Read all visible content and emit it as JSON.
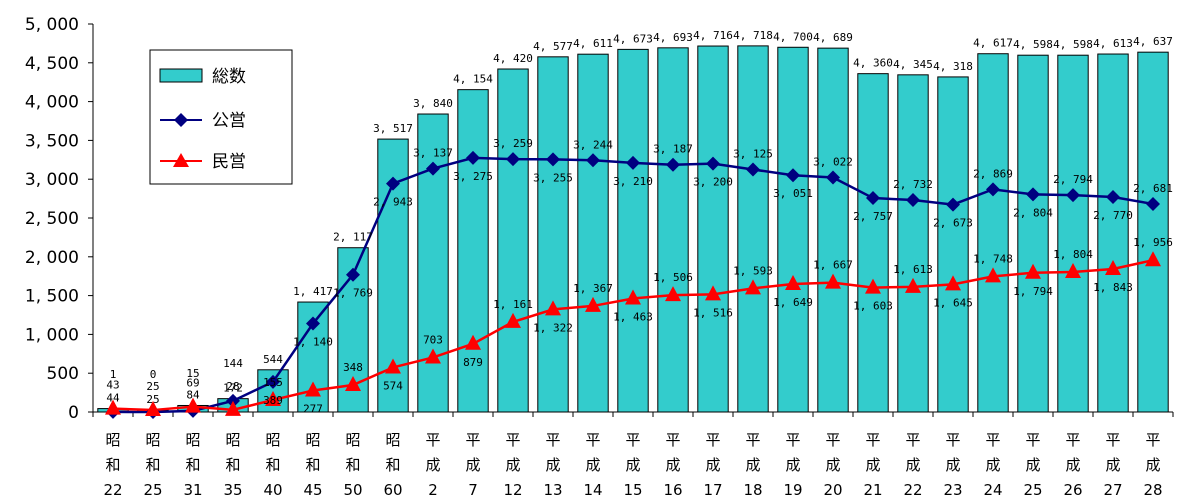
{
  "chart_data": {
    "type": "bar",
    "categories": [
      [
        "昭",
        "和",
        "22"
      ],
      [
        "昭",
        "和",
        "25"
      ],
      [
        "昭",
        "和",
        "31"
      ],
      [
        "昭",
        "和",
        "35"
      ],
      [
        "昭",
        "和",
        "40"
      ],
      [
        "昭",
        "和",
        "45"
      ],
      [
        "昭",
        "和",
        "50"
      ],
      [
        "昭",
        "和",
        "60"
      ],
      [
        "平",
        "成",
        "2"
      ],
      [
        "平",
        "成",
        "7"
      ],
      [
        "平",
        "成",
        "12"
      ],
      [
        "平",
        "成",
        "13"
      ],
      [
        "平",
        "成",
        "14"
      ],
      [
        "平",
        "成",
        "15"
      ],
      [
        "平",
        "成",
        "16"
      ],
      [
        "平",
        "成",
        "17"
      ],
      [
        "平",
        "成",
        "18"
      ],
      [
        "平",
        "成",
        "19"
      ],
      [
        "平",
        "成",
        "20"
      ],
      [
        "平",
        "成",
        "21"
      ],
      [
        "平",
        "成",
        "22"
      ],
      [
        "平",
        "成",
        "23"
      ],
      [
        "平",
        "成",
        "24"
      ],
      [
        "平",
        "成",
        "25"
      ],
      [
        "平",
        "成",
        "26"
      ],
      [
        "平",
        "成",
        "27"
      ],
      [
        "平",
        "成",
        "28"
      ]
    ],
    "ylim": [
      0,
      5000
    ],
    "yticks": [
      {
        "value": 0,
        "label": "0"
      },
      {
        "value": 500,
        "label": "500"
      },
      {
        "value": 1000,
        "label": "1, 000"
      },
      {
        "value": 1500,
        "label": "1, 500"
      },
      {
        "value": 2000,
        "label": "2, 000"
      },
      {
        "value": 2500,
        "label": "2, 500"
      },
      {
        "value": 3000,
        "label": "3, 000"
      },
      {
        "value": 3500,
        "label": "3, 500"
      },
      {
        "value": 4000,
        "label": "4, 000"
      },
      {
        "value": 4500,
        "label": "4, 500"
      },
      {
        "value": 5000,
        "label": "5, 000"
      }
    ],
    "gridlines": false,
    "legend_position": "top-left",
    "series": [
      {
        "name": "総数",
        "kind": "bar",
        "color": "#33CCCC",
        "values": [
          44,
          25,
          84,
          172,
          544,
          1417,
          2117,
          3517,
          3840,
          4154,
          4420,
          4577,
          4611,
          4673,
          4693,
          4716,
          4718,
          4700,
          4689,
          4360,
          4345,
          4318,
          4617,
          4598,
          4598,
          4613,
          4637
        ],
        "labels": [
          "44",
          "25",
          "84",
          "172",
          "544",
          "1, 417",
          "2, 117",
          "3, 517",
          "3, 840",
          "4, 154",
          "4, 420",
          "4, 577",
          "4, 611",
          "4, 673",
          "4, 693",
          "4, 716",
          "4, 718",
          "4, 700",
          "4, 689",
          "4, 360",
          "4, 345",
          "4, 318",
          "4, 617",
          "4, 598",
          "4, 598",
          "4, 613",
          "4, 637"
        ]
      },
      {
        "name": "公営",
        "kind": "line",
        "marker": "diamond",
        "color": "#000080",
        "values": [
          1,
          0,
          15,
          144,
          389,
          1140,
          1769,
          2943,
          3137,
          3275,
          3259,
          3255,
          3244,
          3210,
          3187,
          3200,
          3125,
          3051,
          3022,
          2757,
          2732,
          2673,
          2869,
          2804,
          2794,
          2770,
          2681
        ],
        "labels": [
          "1",
          "0",
          "15",
          "144",
          "389",
          "1, 140",
          "1, 769",
          "2, 943",
          "3, 137",
          "3, 275",
          "3, 259",
          "3, 255",
          "3, 244",
          "3, 210",
          "3, 187",
          "3, 200",
          "3, 125",
          "3, 051",
          "3, 022",
          "2, 757",
          "2, 732",
          "2, 673",
          "2, 869",
          "2, 804",
          "2, 794",
          "2, 770",
          "2, 681"
        ]
      },
      {
        "name": "民営",
        "kind": "line",
        "marker": "triangle",
        "color": "#FF0000",
        "values": [
          43,
          25,
          69,
          28,
          155,
          277,
          348,
          574,
          703,
          879,
          1161,
          1322,
          1367,
          1463,
          1506,
          1516,
          1593,
          1649,
          1667,
          1603,
          1613,
          1645,
          1748,
          1794,
          1804,
          1843,
          1956
        ],
        "labels": [
          "43",
          "25",
          "69",
          "28",
          "155",
          "277",
          "348",
          "574",
          "703",
          "879",
          "1, 161",
          "1, 322",
          "1, 367",
          "1, 463",
          "1, 506",
          "1, 516",
          "1, 593",
          "1, 649",
          "1, 667",
          "1, 603",
          "1, 613",
          "1, 645",
          "1, 748",
          "1, 794",
          "1, 804",
          "1, 843",
          "1, 956"
        ]
      }
    ]
  }
}
